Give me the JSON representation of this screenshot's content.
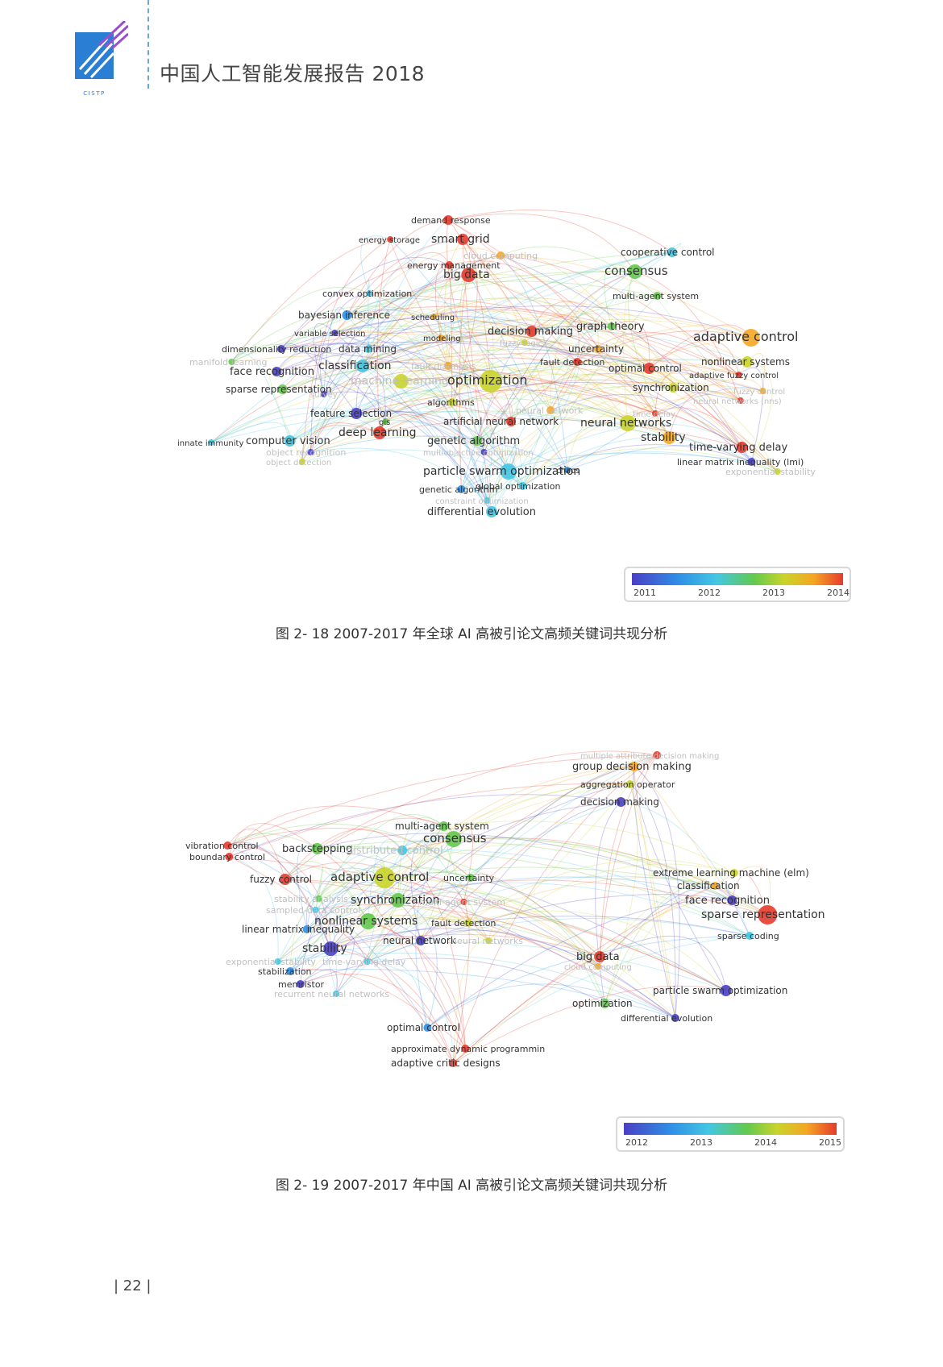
{
  "header": {
    "logo_text": "CISTP",
    "title": "中国人工智能发展报告 2018"
  },
  "figure1": {
    "caption": "图 2- 18  2007-2017 年全球 AI 高被引论文高频关键词共现分析",
    "legend_ticks": [
      "2011",
      "2012",
      "2013",
      "2014"
    ],
    "keywords": [
      {
        "text": "demand response",
        "color": "#e53b2c"
      },
      {
        "text": "energy storage",
        "color": "#e53b2c"
      },
      {
        "text": "smart grid",
        "color": "#e53b2c"
      },
      {
        "text": "cloud computing",
        "color": "#f5a623"
      },
      {
        "text": "energy management",
        "color": "#e53b2c"
      },
      {
        "text": "big data",
        "color": "#e53b2c"
      },
      {
        "text": "cooperative control",
        "color": "#43c7e3"
      },
      {
        "text": "consensus",
        "color": "#63c94d"
      },
      {
        "text": "multi-agent system",
        "color": "#63c94d"
      },
      {
        "text": "convex optimization",
        "color": "#43c7e3"
      },
      {
        "text": "bayesian inference",
        "color": "#2f8fe6"
      },
      {
        "text": "scheduling",
        "color": "#f5a623"
      },
      {
        "text": "graph theory",
        "color": "#63c94d"
      },
      {
        "text": "variable selection",
        "color": "#4a3fc4"
      },
      {
        "text": "decision making",
        "color": "#e53b2c"
      },
      {
        "text": "adaptive control",
        "color": "#f5a623"
      },
      {
        "text": "modeling",
        "color": "#f5a623"
      },
      {
        "text": "fuzzy logic",
        "color": "#c9d42b"
      },
      {
        "text": "dimensionality reduction",
        "color": "#4a3fc4"
      },
      {
        "text": "data mining",
        "color": "#43c7e3"
      },
      {
        "text": "uncertainty",
        "color": "#f5a623"
      },
      {
        "text": "manifold learning",
        "color": "#63c94d"
      },
      {
        "text": "fault detection",
        "color": "#e53b2c"
      },
      {
        "text": "nonlinear systems",
        "color": "#c9d42b"
      },
      {
        "text": "classification",
        "color": "#43c7e3"
      },
      {
        "text": "fault diagnosis",
        "color": "#f5a623"
      },
      {
        "text": "optimal control",
        "color": "#e53b2c"
      },
      {
        "text": "adaptive fuzzy control",
        "color": "#e53b2c"
      },
      {
        "text": "face recognition",
        "color": "#4a3fc4"
      },
      {
        "text": "machine learning",
        "color": "#c9d42b"
      },
      {
        "text": "optimization",
        "color": "#c9d42b"
      },
      {
        "text": "synchronization",
        "color": "#c9d42b"
      },
      {
        "text": "sparse representation",
        "color": "#63c94d"
      },
      {
        "text": "fuzzy control",
        "color": "#f5a623"
      },
      {
        "text": "neural networks (nns)",
        "color": "#e53b2c"
      },
      {
        "text": "algorithms",
        "color": "#c9d42b"
      },
      {
        "text": "survey",
        "color": "#4a3fc4"
      },
      {
        "text": "neural network",
        "color": "#f5a623"
      },
      {
        "text": "time delay",
        "color": "#e53b2c"
      },
      {
        "text": "feature selection",
        "color": "#4a3fc4"
      },
      {
        "text": "gis",
        "color": "#63c94d"
      },
      {
        "text": "artificial neural network",
        "color": "#e53b2c"
      },
      {
        "text": "neural networks",
        "color": "#c9d42b"
      },
      {
        "text": "deep learning",
        "color": "#e53b2c"
      },
      {
        "text": "stability",
        "color": "#f5a623"
      },
      {
        "text": "genetic algorithm",
        "color": "#63c94d"
      },
      {
        "text": "innate immunity",
        "color": "#43c7e3"
      },
      {
        "text": "computer vision",
        "color": "#43c7e3"
      },
      {
        "text": "time-varying delay",
        "color": "#e53b2c"
      },
      {
        "text": "object recognition",
        "color": "#4a3fc4"
      },
      {
        "text": "multiobjective optimization",
        "color": "#4a3fc4"
      },
      {
        "text": "linear matrix inequality (lmi)",
        "color": "#4a3fc4"
      },
      {
        "text": "object detection",
        "color": "#c9d42b"
      },
      {
        "text": "chaos",
        "color": "#2f8fe6"
      },
      {
        "text": "exponential stability",
        "color": "#c9d42b"
      },
      {
        "text": "particle swarm optimization",
        "color": "#43c7e3"
      },
      {
        "text": "genetic algorithm",
        "color": "#2f8fe6"
      },
      {
        "text": "global optimization",
        "color": "#43c7e3"
      },
      {
        "text": "constraint optimization",
        "color": "#43c7e3"
      },
      {
        "text": "differential evolution",
        "color": "#43c7e3"
      }
    ]
  },
  "figure2": {
    "caption": "图 2- 19  2007-2017 年中国 AI 高被引论文高频关键词共现分析",
    "legend_ticks": [
      "2012",
      "2013",
      "2014",
      "2015"
    ],
    "keywords": [
      {
        "text": "multiple attribute decision making",
        "color": "#e53b2c"
      },
      {
        "text": "group decision making",
        "color": "#f5a623"
      },
      {
        "text": "aggregation operator",
        "color": "#c9d42b"
      },
      {
        "text": "decision making",
        "color": "#4a3fc4"
      },
      {
        "text": "multi-agent system",
        "color": "#63c94d"
      },
      {
        "text": "vibration control",
        "color": "#e53b2c"
      },
      {
        "text": "consensus",
        "color": "#63c94d"
      },
      {
        "text": "backstepping",
        "color": "#63c94d"
      },
      {
        "text": "distributed control",
        "color": "#43c7e3"
      },
      {
        "text": "boundary control",
        "color": "#e53b2c"
      },
      {
        "text": "extreme learning machine (elm)",
        "color": "#c9d42b"
      },
      {
        "text": "fuzzy control",
        "color": "#e53b2c"
      },
      {
        "text": "adaptive control",
        "color": "#c9d42b"
      },
      {
        "text": "uncertainty",
        "color": "#63c94d"
      },
      {
        "text": "classification",
        "color": "#f5a623"
      },
      {
        "text": "face recognition",
        "color": "#4a3fc4"
      },
      {
        "text": "stability analysis",
        "color": "#63c94d"
      },
      {
        "text": "synchronization",
        "color": "#63c94d"
      },
      {
        "text": "multi-agent system",
        "color": "#e53b2c"
      },
      {
        "text": "sampled-data control",
        "color": "#43c7e3"
      },
      {
        "text": "sparse representation",
        "color": "#e53b2c"
      },
      {
        "text": "nonlinear systems",
        "color": "#63c94d"
      },
      {
        "text": "fault detection",
        "color": "#c9d42b"
      },
      {
        "text": "linear matrix inequality",
        "color": "#2f8fe6"
      },
      {
        "text": "sparse coding",
        "color": "#43c7e3"
      },
      {
        "text": "neural network",
        "color": "#4a3fc4"
      },
      {
        "text": "neural networks",
        "color": "#c9d42b"
      },
      {
        "text": "stability",
        "color": "#4a3fc4"
      },
      {
        "text": "exponential stability",
        "color": "#43c7e3"
      },
      {
        "text": "time-varying delay",
        "color": "#43c7e3"
      },
      {
        "text": "big data",
        "color": "#e53b2c"
      },
      {
        "text": "cloud computing",
        "color": "#f5a623"
      },
      {
        "text": "stabilization",
        "color": "#2f8fe6"
      },
      {
        "text": "memristor",
        "color": "#4a3fc4"
      },
      {
        "text": "recurrent neural networks",
        "color": "#43c7e3"
      },
      {
        "text": "particle swarm optimization",
        "color": "#4a3fc4"
      },
      {
        "text": "optimization",
        "color": "#63c94d"
      },
      {
        "text": "differential evolution",
        "color": "#4a3fc4"
      },
      {
        "text": "optimal control",
        "color": "#2f8fe6"
      },
      {
        "text": "approximate dynamic programmin",
        "color": "#e53b2c"
      },
      {
        "text": "adaptive critic designs",
        "color": "#e53b2c"
      }
    ]
  },
  "page_number": "| 22 |"
}
